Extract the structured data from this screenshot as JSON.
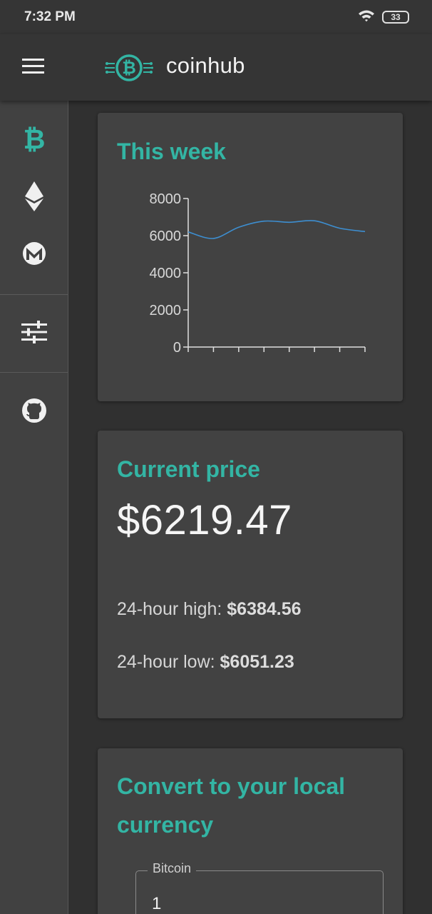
{
  "status_bar": {
    "time": "7:32 PM",
    "battery": "33"
  },
  "app": {
    "title": "coinhub"
  },
  "icons": {
    "menu": "menu-icon",
    "logo": "bitcoin-logo-icon",
    "sidebar": [
      "bitcoin-icon",
      "ethereum-icon",
      "monero-icon",
      "settings-sliders-icon",
      "github-icon"
    ]
  },
  "colors": {
    "accent": "#33b5a4",
    "line": "#3d8ed0",
    "background": "#303030",
    "card": "#424242"
  },
  "week_card": {
    "title": "This week"
  },
  "chart_data": {
    "type": "line",
    "title": "This week",
    "xlabel": "",
    "ylabel": "",
    "ylim": [
      0,
      8000
    ],
    "yticks": [
      "0",
      "2000",
      "4000",
      "6000",
      "8000"
    ],
    "grid": false,
    "series": [
      {
        "values": [
          6200,
          5850,
          6450,
          6780,
          6720,
          6800,
          6400,
          6220
        ],
        "color": "#3d8ed0"
      }
    ]
  },
  "price_card": {
    "title": "Current price",
    "price": "$6219.47",
    "high_label": "24-hour high:",
    "high_value": "$6384.56",
    "low_label": "24-hour low:",
    "low_value": "$6051.23"
  },
  "convert_card": {
    "title_line1": "Convert to your local",
    "title_line2": "currency",
    "field_label": "Bitcoin",
    "field_value": "1"
  }
}
